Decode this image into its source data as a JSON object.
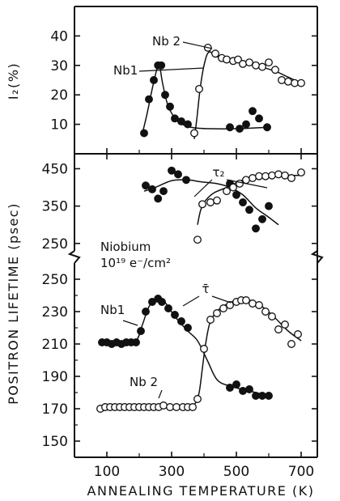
{
  "chart_data": [
    {
      "type": "scatter",
      "panel": "top",
      "ylabel": "I₂(%)",
      "xlabel": "",
      "ylim": [
        0,
        50
      ],
      "xlim": [
        0,
        750
      ],
      "yticks": [
        "10",
        "20",
        "30",
        "40"
      ],
      "annotations": [
        "Nb1",
        "Nb 2"
      ],
      "series": [
        {
          "name": "Nb1",
          "marker": "filled",
          "points": [
            [
              215,
              7
            ],
            [
              230,
              18.5
            ],
            [
              245,
              25
            ],
            [
              258,
              30
            ],
            [
              268,
              30
            ],
            [
              280,
              20
            ],
            [
              295,
              16
            ],
            [
              310,
              12
            ],
            [
              330,
              11
            ],
            [
              350,
              10
            ],
            [
              480,
              9
            ],
            [
              510,
              8.5
            ],
            [
              530,
              10
            ],
            [
              550,
              14.5
            ],
            [
              570,
              12
            ],
            [
              595,
              9
            ]
          ],
          "curve": [
            [
              210,
              7
            ],
            [
              225,
              14
            ],
            [
              240,
              22
            ],
            [
              255,
              29
            ],
            [
              262,
              30.5
            ],
            [
              272,
              24
            ],
            [
              290,
              16
            ],
            [
              320,
              11
            ],
            [
              360,
              9
            ],
            [
              420,
              8.5
            ],
            [
              500,
              8.5
            ],
            [
              600,
              9
            ]
          ]
        },
        {
          "name": "Nb 2",
          "marker": "open",
          "points": [
            [
              370,
              7
            ],
            [
              385,
              22
            ],
            [
              412,
              36
            ],
            [
              435,
              34
            ],
            [
              455,
              32.5
            ],
            [
              470,
              32
            ],
            [
              490,
              31.5
            ],
            [
              505,
              32
            ],
            [
              520,
              30.5
            ],
            [
              540,
              31
            ],
            [
              560,
              30
            ],
            [
              580,
              29.5
            ],
            [
              600,
              31
            ],
            [
              620,
              28.5
            ],
            [
              640,
              25
            ],
            [
              660,
              24.5
            ],
            [
              680,
              24
            ],
            [
              700,
              24
            ]
          ],
          "curve": [
            [
              370,
              5
            ],
            [
              378,
              12
            ],
            [
              388,
              22
            ],
            [
              400,
              30
            ],
            [
              415,
              34.5
            ],
            [
              440,
              33
            ],
            [
              500,
              31.5
            ],
            [
              560,
              30
            ],
            [
              620,
              28
            ],
            [
              660,
              26
            ],
            [
              700,
              24
            ]
          ]
        }
      ]
    },
    {
      "type": "scatter",
      "panel": "middle",
      "ylabel": "POSITRON LIFETIME (psec)",
      "xlabel": "",
      "ylim": [
        230,
        490
      ],
      "yticks": [
        "250",
        "350",
        "450"
      ],
      "annotations": [
        "Niobium",
        "10¹⁹ e⁻/cm²",
        "τ₂"
      ],
      "series": [
        {
          "name": "Nb1",
          "marker": "filled",
          "points": [
            [
              220,
              405
            ],
            [
              240,
              395
            ],
            [
              258,
              370
            ],
            [
              275,
              390
            ],
            [
              300,
              445
            ],
            [
              320,
              435
            ],
            [
              345,
              420
            ],
            [
              480,
              410
            ],
            [
              500,
              380
            ],
            [
              520,
              360
            ],
            [
              540,
              340
            ],
            [
              560,
              290
            ],
            [
              580,
              315
            ],
            [
              600,
              350
            ]
          ],
          "curve": [
            [
              215,
              390
            ],
            [
              250,
              400
            ],
            [
              300,
              418
            ],
            [
              350,
              420
            ],
            [
              390,
              415
            ],
            [
              440,
              410
            ],
            [
              480,
              400
            ],
            [
              520,
              380
            ],
            [
              560,
              345
            ],
            [
              600,
              320
            ],
            [
              630,
              300
            ]
          ]
        },
        {
          "name": "Nb 2",
          "marker": "open",
          "points": [
            [
              380,
              260
            ],
            [
              395,
              355
            ],
            [
              420,
              360
            ],
            [
              440,
              365
            ],
            [
              470,
              390
            ],
            [
              490,
              400
            ],
            [
              510,
              410
            ],
            [
              530,
              420
            ],
            [
              550,
              425
            ],
            [
              570,
              430
            ],
            [
              590,
              430
            ],
            [
              610,
              432
            ],
            [
              630,
              435
            ],
            [
              650,
              432
            ],
            [
              670,
              425
            ],
            [
              700,
              440
            ]
          ],
          "curve": [
            [
              380,
              300
            ],
            [
              390,
              340
            ],
            [
              405,
              365
            ],
            [
              430,
              385
            ],
            [
              470,
              400
            ],
            [
              520,
              420
            ],
            [
              570,
              430
            ],
            [
              620,
              432
            ],
            [
              700,
              432
            ]
          ]
        }
      ]
    },
    {
      "type": "scatter",
      "panel": "bottom",
      "ylabel": "POSITRON LIFETIME (psec)",
      "xlabel": "ANNEALING TEMPERATURE (K)",
      "ylim": [
        140,
        260
      ],
      "xlim": [
        0,
        750
      ],
      "xticks": [
        "100",
        "300",
        "500",
        "700"
      ],
      "yticks": [
        "150",
        "170",
        "190",
        "210",
        "230",
        "250"
      ],
      "annotations": [
        "Nb1",
        "Nb 2",
        "τ̄"
      ],
      "series": [
        {
          "name": "Nb1",
          "marker": "filled",
          "points": [
            [
              85,
              211
            ],
            [
              100,
              211
            ],
            [
              115,
              210
            ],
            [
              130,
              211
            ],
            [
              145,
              210
            ],
            [
              160,
              211
            ],
            [
              175,
              211
            ],
            [
              190,
              211
            ],
            [
              205,
              218
            ],
            [
              220,
              230
            ],
            [
              240,
              236
            ],
            [
              258,
              238
            ],
            [
              270,
              236
            ],
            [
              290,
              232
            ],
            [
              310,
              228
            ],
            [
              330,
              224
            ],
            [
              350,
              220
            ],
            [
              480,
              183
            ],
            [
              500,
              185
            ],
            [
              520,
              181
            ],
            [
              540,
              182
            ],
            [
              560,
              178
            ],
            [
              580,
              178
            ],
            [
              600,
              178
            ]
          ],
          "curve": [
            [
              80,
              211
            ],
            [
              150,
              211
            ],
            [
              190,
              212
            ],
            [
              210,
              222
            ],
            [
              230,
              233
            ],
            [
              255,
              239
            ],
            [
              275,
              237
            ],
            [
              310,
              227
            ],
            [
              350,
              218
            ],
            [
              380,
              212
            ],
            [
              410,
              200
            ],
            [
              440,
              188
            ],
            [
              480,
              184
            ],
            [
              560,
              180
            ],
            [
              600,
              178
            ]
          ]
        },
        {
          "name": "Nb 2",
          "marker": "open",
          "points": [
            [
              80,
              170
            ],
            [
              95,
              171
            ],
            [
              110,
              171
            ],
            [
              125,
              171
            ],
            [
              140,
              171
            ],
            [
              155,
              171
            ],
            [
              170,
              171
            ],
            [
              185,
              171
            ],
            [
              200,
              171
            ],
            [
              215,
              171
            ],
            [
              230,
              171
            ],
            [
              245,
              171
            ],
            [
              260,
              171
            ],
            [
              275,
              172
            ],
            [
              295,
              171
            ],
            [
              315,
              171
            ],
            [
              335,
              171
            ],
            [
              350,
              171
            ],
            [
              365,
              171
            ],
            [
              380,
              176
            ],
            [
              400,
              207
            ],
            [
              420,
              225
            ],
            [
              440,
              229
            ],
            [
              460,
              232
            ],
            [
              480,
              234
            ],
            [
              500,
              236
            ],
            [
              515,
              237
            ],
            [
              530,
              237
            ],
            [
              550,
              235
            ],
            [
              570,
              234
            ],
            [
              590,
              230
            ],
            [
              610,
              227
            ],
            [
              630,
              219
            ],
            [
              650,
              222
            ],
            [
              670,
              210
            ],
            [
              690,
              216
            ]
          ],
          "curve": [
            [
              80,
              170
            ],
            [
              200,
              171
            ],
            [
              350,
              171
            ],
            [
              372,
              173
            ],
            [
              385,
              180
            ],
            [
              395,
              195
            ],
            [
              405,
              210
            ],
            [
              420,
              224
            ],
            [
              450,
              232
            ],
            [
              500,
              237
            ],
            [
              540,
              237
            ],
            [
              580,
              233
            ],
            [
              620,
              226
            ],
            [
              660,
              218
            ],
            [
              700,
              212
            ]
          ]
        }
      ]
    }
  ]
}
